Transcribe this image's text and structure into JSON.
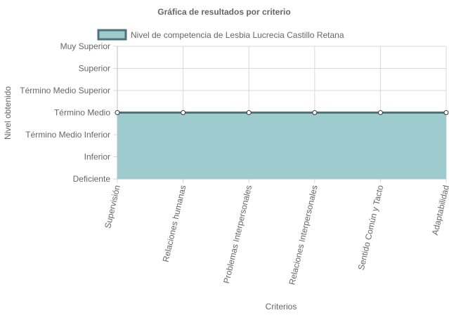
{
  "chart_data": {
    "type": "area",
    "title": "Gráfica de resultados por criterio",
    "xlabel": "Criterios",
    "ylabel": "Nivel obtenido",
    "categories": [
      "Supervisión",
      "Relaciones humanas",
      "Problemas Interpersonales",
      "Relaciones Interpersonales",
      "Sentido Común y Tacto",
      "Adaptabilidad"
    ],
    "y_levels": [
      "Deficiente",
      "Inferior",
      "Término Medio Inferior",
      "Término Medio",
      "Término Medio Superior",
      "Superior",
      "Muy Superior"
    ],
    "series": [
      {
        "name": "Nivel de competencia de Lesbia Lucrecia Castillo Retana",
        "values": [
          "Término Medio",
          "Término Medio",
          "Término Medio",
          "Término Medio",
          "Término Medio",
          "Término Medio"
        ]
      }
    ],
    "legend": "top",
    "grid": true,
    "colors": {
      "fill": "#9ecbce",
      "line": "#4e7479",
      "point_fill": "#ffffff",
      "grid": "#d9d9d9",
      "text": "#666666"
    }
  }
}
